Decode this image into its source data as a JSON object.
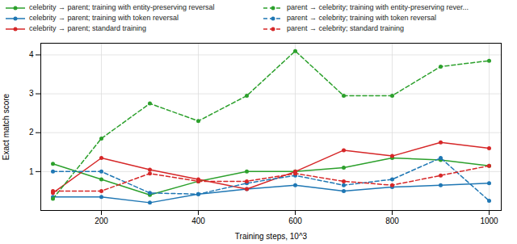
{
  "chart_data": {
    "type": "line",
    "x": [
      100,
      200,
      300,
      400,
      500,
      600,
      700,
      800,
      900,
      1000
    ],
    "xlabel": "Training steps, 10^3",
    "ylabel": "Exact match score",
    "xlim": [
      75,
      1025
    ],
    "ylim": [
      0,
      4.3
    ],
    "xticks": [
      200,
      400,
      600,
      800,
      1000
    ],
    "yticks": [
      1,
      2,
      3,
      4
    ],
    "grid": true,
    "legend": "top",
    "series": [
      {
        "name": "celebrity → parent; training with entity-preserving reversal",
        "color": "#2ca02c",
        "marker": "circle",
        "line_style": "solid",
        "values": [
          1.2,
          0.8,
          0.4,
          0.75,
          1.0,
          1.0,
          1.1,
          1.35,
          1.3,
          1.15
        ]
      },
      {
        "name": "celebrity → parent; training with token reversal",
        "color": "#1f77b4",
        "marker": "circle",
        "line_style": "solid",
        "values": [
          0.35,
          0.35,
          0.2,
          0.42,
          0.55,
          0.65,
          0.5,
          0.6,
          0.65,
          0.7
        ]
      },
      {
        "name": "celebrity → parent; standard training",
        "color": "#d62728",
        "marker": "circle",
        "line_style": "solid",
        "values": [
          0.45,
          1.35,
          1.05,
          0.8,
          0.55,
          1.0,
          1.55,
          1.4,
          1.75,
          1.6
        ]
      },
      {
        "name": "parent → celebrity; training with entity-preserving rever...",
        "color": "#2ca02c",
        "marker": "circle",
        "line_style": "dashed",
        "values": [
          0.3,
          1.85,
          2.75,
          2.3,
          2.95,
          4.1,
          2.95,
          2.95,
          3.7,
          3.85
        ]
      },
      {
        "name": "parent → celebrity; training with token reversal",
        "color": "#1f77b4",
        "marker": "circle",
        "line_style": "dashed",
        "values": [
          1.0,
          1.0,
          0.45,
          0.42,
          0.7,
          0.9,
          0.65,
          0.8,
          1.35,
          0.25
        ]
      },
      {
        "name": "parent → celebrity; standard training",
        "color": "#d62728",
        "marker": "circle",
        "line_style": "dashed",
        "values": [
          0.5,
          0.5,
          0.95,
          0.75,
          0.75,
          0.95,
          0.75,
          0.65,
          0.9,
          1.15
        ]
      }
    ]
  }
}
